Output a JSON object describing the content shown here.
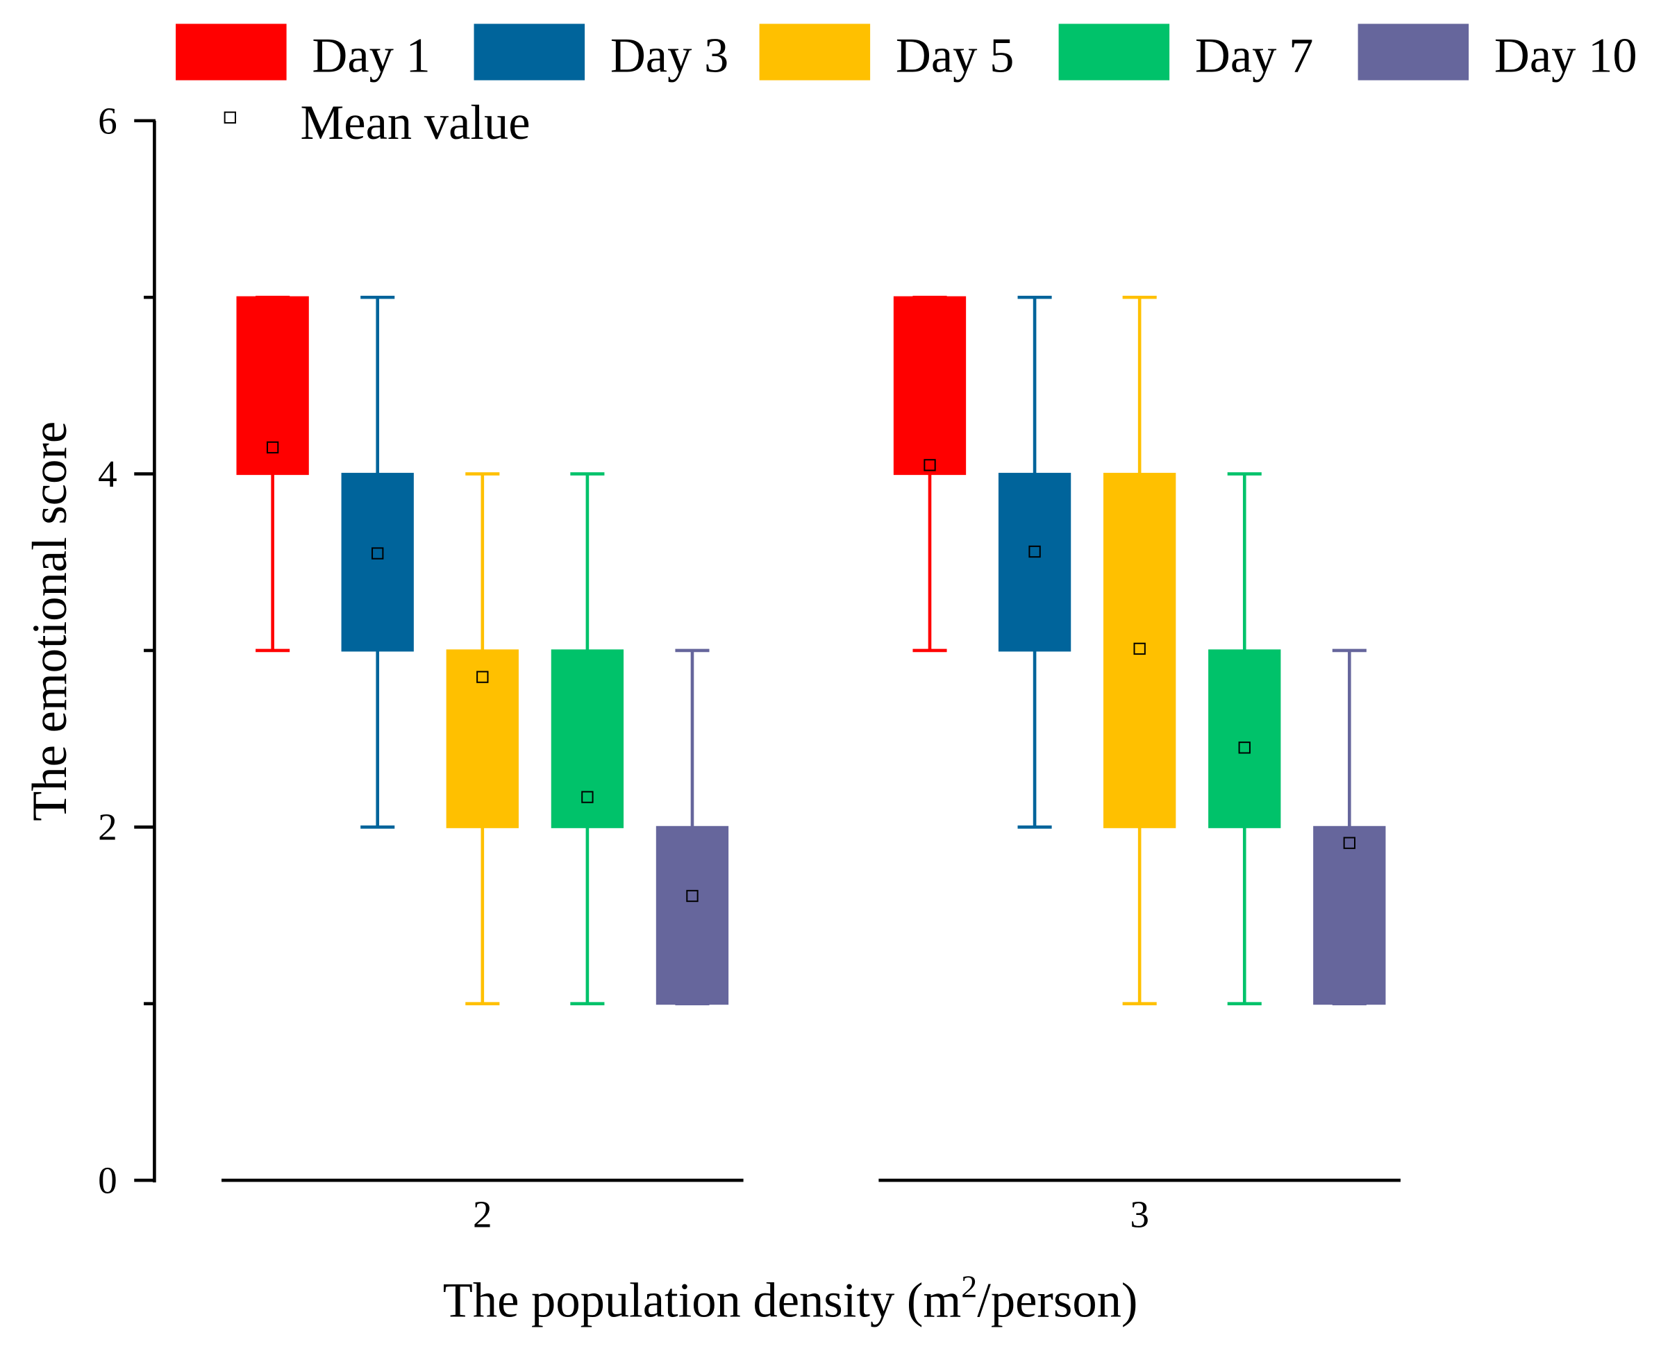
{
  "chart_data": {
    "type": "box",
    "title": "",
    "xlabel_main": "The population density (m",
    "xlabel_sup": "2",
    "xlabel_tail": "/person)",
    "ylabel": "The emotional score",
    "ylim": [
      0,
      6
    ],
    "yticks": [
      "0",
      "2",
      "4",
      "6"
    ],
    "yticks_values": [
      0,
      2,
      4,
      6
    ],
    "minor_ticks": [
      1,
      3,
      5
    ],
    "categories": [
      "2",
      "3"
    ],
    "legend_position": "top",
    "mean_label": "Mean value",
    "series": [
      {
        "name": "Day 1",
        "color": "#FF0000",
        "boxes": [
          {
            "min": 3,
            "q1": 4,
            "q3": 5,
            "max": 5,
            "mean": 4.15
          },
          {
            "min": 3,
            "q1": 4,
            "q3": 5,
            "max": 5,
            "mean": 4.05
          }
        ]
      },
      {
        "name": "Day 3",
        "color": "#00649B",
        "boxes": [
          {
            "min": 2,
            "q1": 3,
            "q3": 4,
            "max": 5,
            "mean": 3.55
          },
          {
            "min": 2,
            "q1": 3,
            "q3": 4,
            "max": 5,
            "mean": 3.56
          }
        ]
      },
      {
        "name": "Day 5",
        "color": "#FFC000",
        "boxes": [
          {
            "min": 1,
            "q1": 2,
            "q3": 3,
            "max": 4,
            "mean": 2.85
          },
          {
            "min": 1,
            "q1": 2,
            "q3": 4,
            "max": 5,
            "mean": 3.01
          }
        ]
      },
      {
        "name": "Day 7",
        "color": "#00C26A",
        "boxes": [
          {
            "min": 1,
            "q1": 2,
            "q3": 3,
            "max": 4,
            "mean": 2.17
          },
          {
            "min": 1,
            "q1": 2,
            "q3": 3,
            "max": 4,
            "mean": 2.45
          }
        ]
      },
      {
        "name": "Day 10",
        "color": "#66669C",
        "boxes": [
          {
            "min": 1,
            "q1": 1,
            "q3": 2,
            "max": 3,
            "mean": 1.61
          },
          {
            "min": 1,
            "q1": 1,
            "q3": 2,
            "max": 3,
            "mean": 1.91
          }
        ]
      }
    ]
  }
}
